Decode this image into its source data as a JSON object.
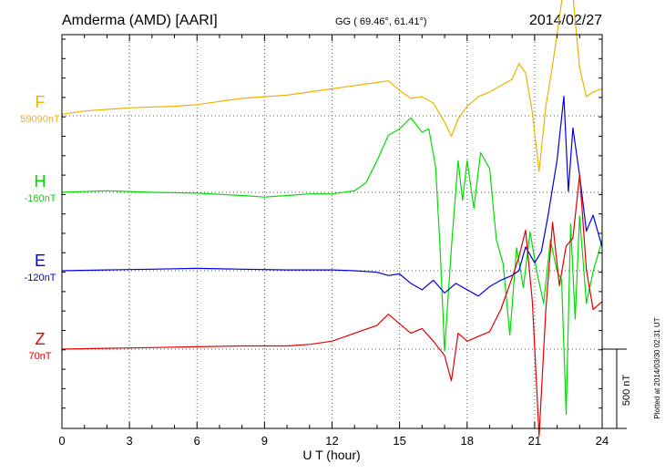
{
  "header": {
    "title": "Amderma (AMD)  [AARI]",
    "coords": "GG ( 69.46°,  61.41°)",
    "date": "2014/02/27"
  },
  "footer": {
    "plotted": "Plotted at 2014/03/30 02:31  UT",
    "scale_label": "500 nT"
  },
  "chart_data": {
    "type": "line",
    "xlabel": "U T (hour)",
    "xlim": [
      0,
      24
    ],
    "xticks": [
      "0",
      "3",
      "6",
      "9",
      "12",
      "15",
      "18",
      "21",
      "24"
    ],
    "grid": true,
    "scale_bar_nT": 500,
    "series": [
      {
        "name": "F",
        "baseline_label": "59090nT",
        "color": "#f2b100",
        "x": [
          0,
          1,
          2,
          3,
          4,
          5,
          6,
          7,
          8,
          9,
          10,
          11,
          12,
          13,
          14,
          14.5,
          15,
          15.5,
          16,
          16.5,
          17,
          17.3,
          17.6,
          18,
          18.5,
          19,
          19.5,
          20,
          20.3,
          20.6,
          20.9,
          21.2,
          21.5,
          21.8,
          22.1,
          22.4,
          22.7,
          23,
          23.3,
          23.6,
          24
        ],
        "y": [
          10,
          30,
          40,
          50,
          55,
          60,
          70,
          90,
          110,
          120,
          130,
          150,
          170,
          190,
          210,
          220,
          160,
          110,
          120,
          80,
          -40,
          -130,
          -20,
          60,
          120,
          150,
          190,
          230,
          330,
          270,
          20,
          -350,
          60,
          320,
          620,
          920,
          760,
          300,
          120,
          150,
          170
        ]
      },
      {
        "name": "H",
        "baseline_label": "-160nT",
        "color": "#00dd00",
        "x": [
          0,
          2,
          4,
          6,
          8,
          9,
          10,
          11,
          12,
          13,
          13.5,
          14,
          14.5,
          15,
          15.5,
          16,
          16.3,
          16.6,
          16.8,
          17,
          17.3,
          17.6,
          17.8,
          18,
          18.3,
          18.6,
          19,
          19.3,
          19.6,
          19.9,
          20.2,
          20.5,
          20.8,
          21.1,
          21.4,
          21.7,
          22,
          22.2,
          22.4,
          22.6,
          22.8,
          23,
          23.3,
          23.6,
          24
        ],
        "y": [
          0,
          10,
          0,
          -5,
          -20,
          -30,
          -20,
          -10,
          -10,
          10,
          60,
          200,
          360,
          400,
          470,
          380,
          400,
          160,
          -350,
          -1000,
          -350,
          200,
          -50,
          200,
          -100,
          250,
          150,
          -300,
          -450,
          -900,
          -350,
          -600,
          -250,
          -500,
          -700,
          -300,
          -500,
          -550,
          -1400,
          -200,
          -800,
          -150,
          -700,
          -500,
          -300
        ]
      },
      {
        "name": "E",
        "baseline_label": "-120nT",
        "color": "#0000dd",
        "x": [
          0,
          2,
          4,
          6,
          8,
          10,
          12,
          13,
          14,
          14.5,
          15,
          15.5,
          16,
          16.5,
          17,
          17.5,
          18,
          18.5,
          19,
          19.5,
          20,
          20.3,
          20.6,
          21,
          21.3,
          21.6,
          22,
          22.3,
          22.5,
          22.7,
          23,
          23.3,
          23.6,
          24
        ],
        "y": [
          0,
          5,
          10,
          15,
          10,
          5,
          5,
          0,
          -10,
          -30,
          -20,
          -80,
          -120,
          -60,
          -140,
          -80,
          -120,
          -160,
          -100,
          -60,
          -30,
          0,
          150,
          50,
          120,
          350,
          700,
          1100,
          500,
          900,
          600,
          250,
          350,
          150
        ]
      },
      {
        "name": "Z",
        "baseline_label": "70nT",
        "color": "#e00000",
        "x": [
          0,
          2,
          4,
          6,
          8,
          10,
          11,
          12,
          13,
          14,
          14.5,
          15,
          15.5,
          16,
          16.5,
          17,
          17.3,
          17.6,
          18,
          18.5,
          19,
          19.5,
          20,
          20.3,
          20.6,
          20.9,
          21.2,
          21.5,
          21.8,
          22.1,
          22.4,
          22.7,
          23,
          23.3,
          23.6,
          24
        ],
        "y": [
          0,
          5,
          10,
          15,
          20,
          20,
          30,
          50,
          100,
          150,
          220,
          160,
          100,
          130,
          50,
          -40,
          -200,
          100,
          50,
          80,
          110,
          250,
          450,
          580,
          750,
          300,
          -550,
          250,
          800,
          400,
          650,
          700,
          1100,
          500,
          250,
          300
        ]
      }
    ]
  }
}
